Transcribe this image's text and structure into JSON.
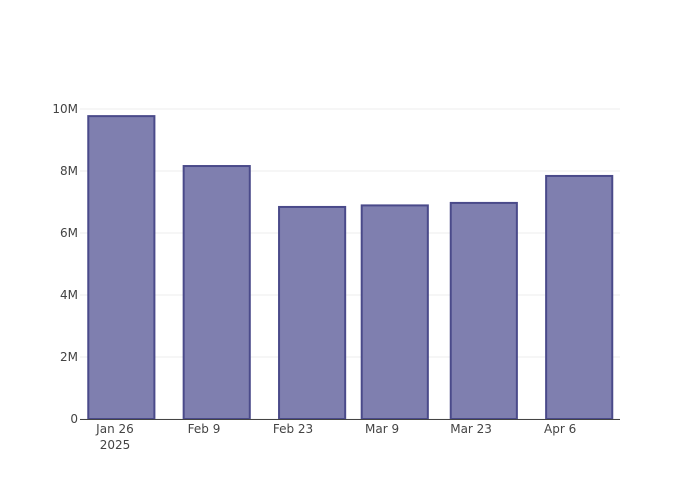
{
  "chart_data": {
    "type": "bar",
    "x": [
      "2025-01-27",
      "2025-02-11",
      "2025-02-26",
      "2025-03-11",
      "2025-03-25",
      "2025-04-09"
    ],
    "values": [
      9770000,
      8160000,
      6840000,
      6890000,
      6970000,
      7840000
    ],
    "color": "#7f7faf",
    "edge_color": "#4a4a8a",
    "bar_width_days": 10.4,
    "xlim": [
      "2025-01-20T12:00:00",
      "2025-04-15T10:00:00"
    ],
    "xticks": [
      {
        "value": "2025-01-26",
        "label": "Jan 26\n2025"
      },
      {
        "value": "2025-02-09",
        "label": "Feb 9"
      },
      {
        "value": "2025-02-23",
        "label": "Feb 23"
      },
      {
        "value": "2025-03-09",
        "label": "Mar 9"
      },
      {
        "value": "2025-03-23",
        "label": "Mar 23"
      },
      {
        "value": "2025-04-06",
        "label": "Apr 6"
      }
    ],
    "ylim": [
      0,
      10290000
    ],
    "yticks": [
      0,
      {
        "value": 2000000,
        "label": "2M"
      },
      {
        "value": 4000000,
        "label": "4M"
      },
      {
        "value": 6000000,
        "label": "6M"
      },
      {
        "value": 8000000,
        "label": "8M"
      },
      {
        "value": 10000000,
        "label": "10M"
      }
    ],
    "grid": true
  }
}
